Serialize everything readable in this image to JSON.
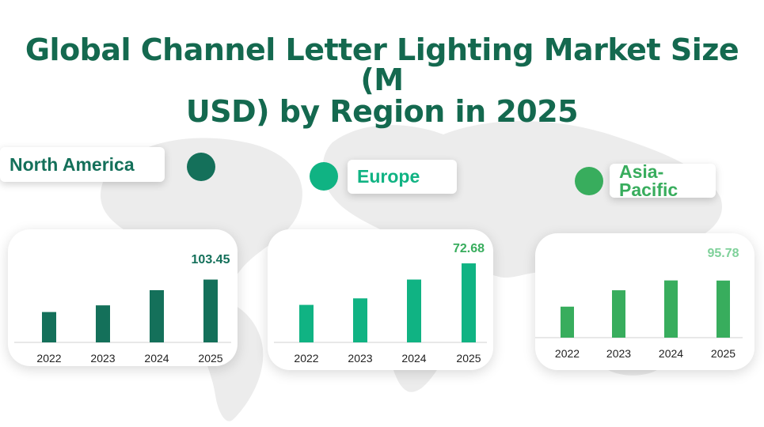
{
  "title_line1": "Global Channel Letter Lighting Market Size (M",
  "title_line2": "USD) by Region in 2025",
  "colors": {
    "title": "#14694f",
    "north_america": "#14705a",
    "europe": "#10b383",
    "asia_pacific": "#38ad5d",
    "asia_pacific_label": "#7fd19a"
  },
  "chart_data": [
    {
      "type": "bar",
      "title": "North America",
      "categories": [
        "2022",
        "2023",
        "2024",
        "2025"
      ],
      "values": [
        50.0,
        61.0,
        86.0,
        103.45
      ],
      "labeled_value": "103.45",
      "ylim": [
        0,
        125
      ]
    },
    {
      "type": "bar",
      "title": "Europe",
      "categories": [
        "2022",
        "2023",
        "2024",
        "2025"
      ],
      "values": [
        34.5,
        40.5,
        57.8,
        72.68
      ],
      "labeled_value": "72.68",
      "ylim": [
        0,
        80
      ]
    },
    {
      "type": "bar",
      "title": "Asia-Pacific",
      "categories": [
        "2022",
        "2023",
        "2024",
        "2025"
      ],
      "values": [
        52.0,
        79.5,
        96.0,
        95.78
      ],
      "labeled_value": "95.78",
      "ylim": [
        0,
        130
      ]
    }
  ]
}
